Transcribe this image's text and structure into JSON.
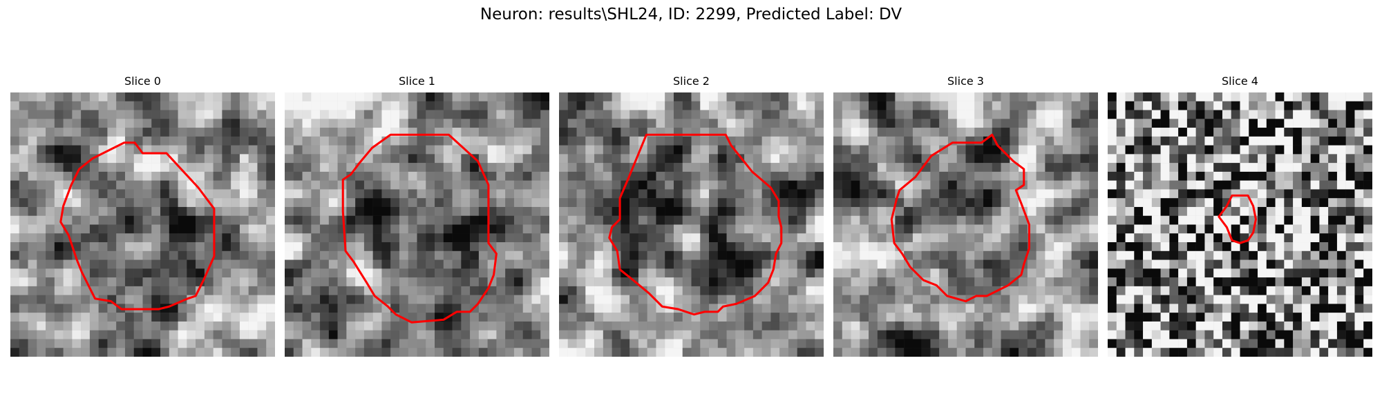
{
  "figure": {
    "title": "Neuron: results\\SHL24, ID: 2299, Predicted Label: DV"
  },
  "slices": [
    {
      "label": "Slice 0",
      "contour": [
        [
          0.43,
          0.19
        ],
        [
          0.47,
          0.19
        ],
        [
          0.5,
          0.23
        ],
        [
          0.59,
          0.23
        ],
        [
          0.71,
          0.36
        ],
        [
          0.77,
          0.44
        ],
        [
          0.77,
          0.62
        ],
        [
          0.73,
          0.71
        ],
        [
          0.7,
          0.77
        ],
        [
          0.67,
          0.78
        ],
        [
          0.6,
          0.81
        ],
        [
          0.56,
          0.82
        ],
        [
          0.42,
          0.82
        ],
        [
          0.38,
          0.79
        ],
        [
          0.32,
          0.78
        ],
        [
          0.3,
          0.74
        ],
        [
          0.27,
          0.68
        ],
        [
          0.25,
          0.63
        ],
        [
          0.22,
          0.54
        ],
        [
          0.19,
          0.49
        ],
        [
          0.2,
          0.43
        ],
        [
          0.23,
          0.35
        ],
        [
          0.26,
          0.29
        ],
        [
          0.31,
          0.25
        ],
        [
          0.37,
          0.22
        ]
      ]
    },
    {
      "label": "Slice 1",
      "contour": [
        [
          0.4,
          0.16
        ],
        [
          0.62,
          0.16
        ],
        [
          0.73,
          0.26
        ],
        [
          0.77,
          0.35
        ],
        [
          0.77,
          0.57
        ],
        [
          0.8,
          0.61
        ],
        [
          0.79,
          0.69
        ],
        [
          0.77,
          0.74
        ],
        [
          0.73,
          0.8
        ],
        [
          0.7,
          0.83
        ],
        [
          0.65,
          0.83
        ],
        [
          0.6,
          0.86
        ],
        [
          0.48,
          0.87
        ],
        [
          0.42,
          0.84
        ],
        [
          0.39,
          0.81
        ],
        [
          0.34,
          0.77
        ],
        [
          0.31,
          0.72
        ],
        [
          0.26,
          0.64
        ],
        [
          0.23,
          0.6
        ],
        [
          0.22,
          0.45
        ],
        [
          0.22,
          0.33
        ],
        [
          0.25,
          0.31
        ],
        [
          0.28,
          0.27
        ],
        [
          0.33,
          0.21
        ]
      ]
    },
    {
      "label": "Slice 2",
      "contour": [
        [
          0.33,
          0.16
        ],
        [
          0.63,
          0.16
        ],
        [
          0.65,
          0.2
        ],
        [
          0.69,
          0.25
        ],
        [
          0.73,
          0.3
        ],
        [
          0.8,
          0.36
        ],
        [
          0.83,
          0.41
        ],
        [
          0.83,
          0.47
        ],
        [
          0.84,
          0.51
        ],
        [
          0.84,
          0.57
        ],
        [
          0.82,
          0.61
        ],
        [
          0.81,
          0.67
        ],
        [
          0.79,
          0.72
        ],
        [
          0.74,
          0.77
        ],
        [
          0.67,
          0.8
        ],
        [
          0.62,
          0.81
        ],
        [
          0.6,
          0.83
        ],
        [
          0.55,
          0.83
        ],
        [
          0.51,
          0.84
        ],
        [
          0.45,
          0.82
        ],
        [
          0.39,
          0.81
        ],
        [
          0.34,
          0.76
        ],
        [
          0.28,
          0.71
        ],
        [
          0.23,
          0.67
        ],
        [
          0.22,
          0.6
        ],
        [
          0.19,
          0.55
        ],
        [
          0.2,
          0.51
        ],
        [
          0.23,
          0.48
        ],
        [
          0.23,
          0.4
        ],
        [
          0.26,
          0.33
        ]
      ]
    },
    {
      "label": "Slice 3",
      "contour": [
        [
          0.45,
          0.19
        ],
        [
          0.56,
          0.19
        ],
        [
          0.6,
          0.16
        ],
        [
          0.62,
          0.2
        ],
        [
          0.68,
          0.26
        ],
        [
          0.72,
          0.29
        ],
        [
          0.72,
          0.35
        ],
        [
          0.69,
          0.37
        ],
        [
          0.71,
          0.42
        ],
        [
          0.74,
          0.5
        ],
        [
          0.74,
          0.59
        ],
        [
          0.72,
          0.65
        ],
        [
          0.71,
          0.69
        ],
        [
          0.66,
          0.73
        ],
        [
          0.62,
          0.75
        ],
        [
          0.58,
          0.77
        ],
        [
          0.54,
          0.77
        ],
        [
          0.5,
          0.79
        ],
        [
          0.43,
          0.77
        ],
        [
          0.39,
          0.73
        ],
        [
          0.34,
          0.71
        ],
        [
          0.29,
          0.66
        ],
        [
          0.26,
          0.61
        ],
        [
          0.23,
          0.57
        ],
        [
          0.22,
          0.48
        ],
        [
          0.24,
          0.4
        ],
        [
          0.25,
          0.37
        ],
        [
          0.31,
          0.32
        ],
        [
          0.37,
          0.24
        ]
      ]
    },
    {
      "label": "Slice 4",
      "contour": [
        [
          0.47,
          0.39
        ],
        [
          0.53,
          0.39
        ],
        [
          0.55,
          0.43
        ],
        [
          0.56,
          0.48
        ],
        [
          0.55,
          0.53
        ],
        [
          0.53,
          0.56
        ],
        [
          0.5,
          0.57
        ],
        [
          0.47,
          0.56
        ],
        [
          0.45,
          0.51
        ],
        [
          0.42,
          0.47
        ],
        [
          0.45,
          0.43
        ]
      ]
    }
  ],
  "contour_color": "#ff0000"
}
